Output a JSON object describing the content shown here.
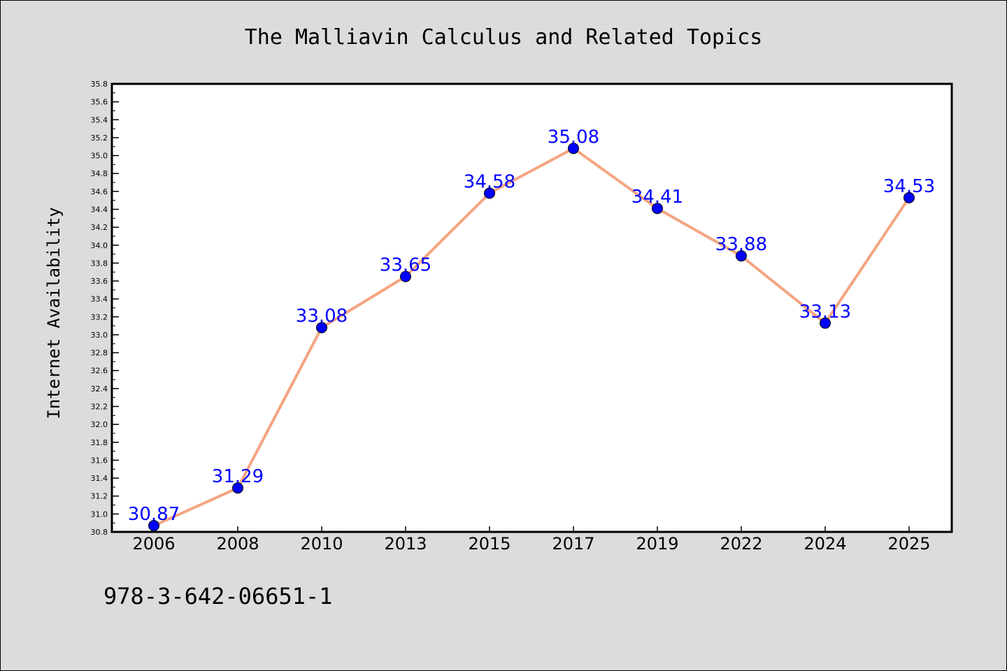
{
  "colors": {
    "background": "#dcdcdc",
    "plot_background": "#ffffff",
    "line": "#f4a582",
    "marker": "#0000ff",
    "data_label": "#0000ff"
  },
  "footer": {
    "text": "978-3-642-06651-1"
  },
  "chart_data": {
    "type": "line",
    "title": "The Malliavin Calculus and Related Topics",
    "xlabel": "",
    "ylabel": "Internet Availability",
    "categories": [
      "2006",
      "2008",
      "2010",
      "2013",
      "2015",
      "2017",
      "2019",
      "2022",
      "2024",
      "2025"
    ],
    "series": [
      {
        "values": [
          30.87,
          31.29,
          33.08,
          33.65,
          34.58,
          35.08,
          34.41,
          33.88,
          33.13,
          34.53
        ]
      }
    ],
    "ylim": [
      30.8,
      35.8
    ],
    "yticks": [
      "30.8",
      "31.0",
      "31.2",
      "31.4",
      "31.6",
      "31.8",
      "32.0",
      "32.2",
      "32.4",
      "32.6",
      "32.8",
      "33.0",
      "33.2",
      "33.4",
      "33.6",
      "33.8",
      "34.0",
      "34.2",
      "34.4",
      "34.6",
      "34.8",
      "35.0",
      "35.2",
      "35.4",
      "35.6",
      "35.8"
    ],
    "data_labels": [
      "30.87",
      "31.29",
      "33.08",
      "33.65",
      "34.58",
      "35.08",
      "34.41",
      "33.88",
      "33.13",
      "34.53"
    ],
    "grid": false,
    "legend": "none"
  }
}
